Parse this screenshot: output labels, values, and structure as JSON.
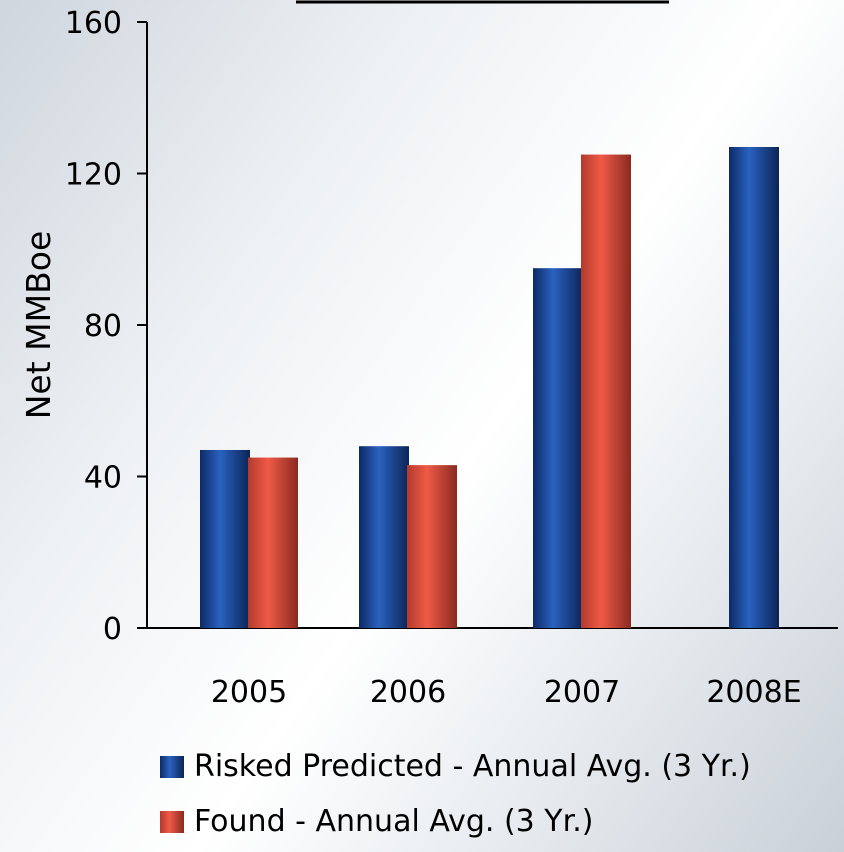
{
  "chart_data": {
    "type": "bar",
    "title": "",
    "xlabel": "",
    "ylabel": "Net MMBoe",
    "categories": [
      "2005",
      "2006",
      "2007",
      "2008E"
    ],
    "ylim": [
      0,
      160
    ],
    "yticks": [
      0,
      40,
      80,
      120,
      160
    ],
    "grid": false,
    "legend_position": "bottom",
    "series": [
      {
        "name": "Risked Predicted - Annual Avg. (3 Yr.)",
        "values": [
          47,
          48,
          95,
          127
        ],
        "color": "#1f4fa0"
      },
      {
        "name": "Found - Annual Avg. (3 Yr.)",
        "values": [
          45,
          43,
          125,
          null
        ],
        "color": "#d9483b"
      }
    ]
  }
}
